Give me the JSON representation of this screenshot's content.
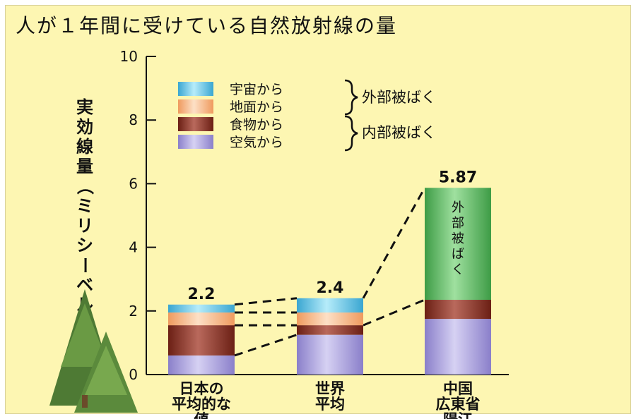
{
  "colors": {
    "background": "#fdf6b2",
    "cosmic": "#5cbfe0",
    "terrestrial": "#f7b382",
    "food": "#7a2b1f",
    "air": "#9a90d4",
    "external_yangjiang": "#4aaa52"
  },
  "chart_data": {
    "type": "bar",
    "title": "人が１年間に受けている自然放射線の量",
    "ylabel": "実効線量（ミリシーベルト／年）",
    "ylim": [
      0,
      10
    ],
    "yticks": [
      "0",
      "2",
      "4",
      "6",
      "8",
      "10"
    ],
    "categories": [
      "日本の平均的な値",
      "世界平均",
      "中国広東省陽江"
    ],
    "category_lines": [
      [
        "日本の",
        "平均的な",
        "値"
      ],
      [
        "世界",
        "平均"
      ],
      [
        "中国",
        "広東省",
        "陽江"
      ]
    ],
    "totals": [
      "2.2",
      "2.4",
      "5.87"
    ],
    "series": [
      {
        "name": "空気から",
        "values": [
          0.6,
          1.25,
          1.75
        ]
      },
      {
        "name": "食物から",
        "values": [
          0.95,
          0.3,
          0.6
        ]
      },
      {
        "name": "地面から",
        "values": [
          0.4,
          0.4,
          0
        ]
      },
      {
        "name": "宇宙から",
        "values": [
          0.25,
          0.45,
          0
        ]
      },
      {
        "name": "外部被ばく",
        "values": [
          0,
          0,
          3.52
        ]
      }
    ],
    "legend": {
      "placement": "top-left",
      "items": [
        "宇宙から",
        "地面から",
        "食物から",
        "空気から"
      ],
      "groups": [
        "外部被ばく",
        "内部被ばく"
      ]
    },
    "annotation": "外部被ばく"
  }
}
